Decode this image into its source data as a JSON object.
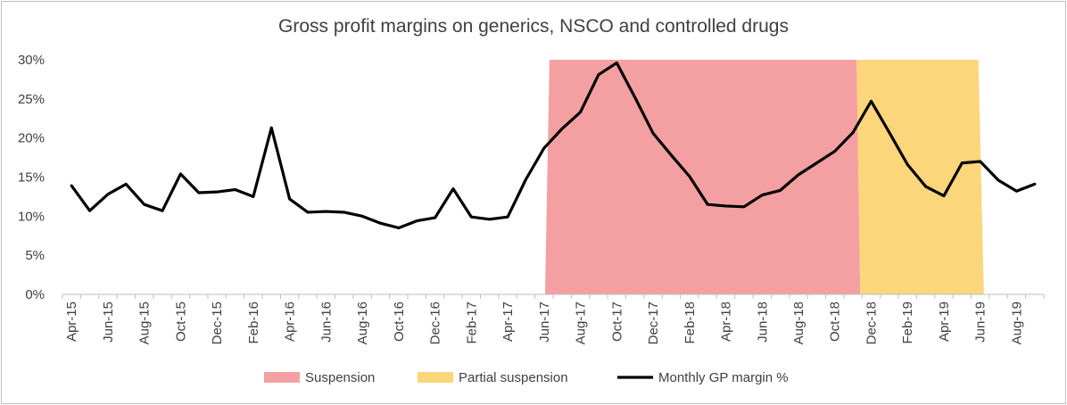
{
  "chart_data": {
    "type": "line",
    "title": "Gross profit margins on generics, NSCO and controlled drugs",
    "ylim": [
      0,
      0.3
    ],
    "y_ticks": [
      {
        "value": 0.0,
        "label": "0%"
      },
      {
        "value": 0.05,
        "label": "5%"
      },
      {
        "value": 0.1,
        "label": "10%"
      },
      {
        "value": 0.15,
        "label": "15%"
      },
      {
        "value": 0.2,
        "label": "20%"
      },
      {
        "value": 0.25,
        "label": "25%"
      },
      {
        "value": 0.3,
        "label": "30%"
      }
    ],
    "x_tick_labels": [
      "Apr-15",
      "Jun-15",
      "Aug-15",
      "Oct-15",
      "Dec-15",
      "Feb-16",
      "Apr-16",
      "Jun-16",
      "Aug-16",
      "Oct-16",
      "Dec-16",
      "Feb-17",
      "Apr-17",
      "Jun-17",
      "Aug-17",
      "Oct-17",
      "Dec-17",
      "Feb-18",
      "Apr-18",
      "Jun-18",
      "Aug-18",
      "Oct-18",
      "Dec-18",
      "Feb-19",
      "Apr-19",
      "Jun-19",
      "Aug-19"
    ],
    "series": [
      {
        "name": "Monthly GP margin %",
        "color": "#000000",
        "values": [
          0.139,
          0.107,
          0.128,
          0.141,
          0.115,
          0.107,
          0.154,
          0.13,
          0.131,
          0.134,
          0.125,
          0.213,
          0.122,
          0.105,
          0.106,
          0.105,
          0.1,
          0.091,
          0.085,
          0.094,
          0.098,
          0.135,
          0.099,
          0.096,
          0.099,
          0.147,
          0.187,
          0.212,
          0.233,
          0.281,
          0.296,
          0.252,
          0.206,
          0.178,
          0.151,
          0.115,
          0.113,
          0.112,
          0.127,
          0.133,
          0.153,
          0.168,
          0.183,
          0.207,
          0.247,
          0.207,
          0.166,
          0.138,
          0.126,
          0.168,
          0.17,
          0.146,
          0.132,
          0.141
        ]
      }
    ],
    "bands": [
      {
        "name": "Suspension",
        "color": "#f4a0a2",
        "start_index": 26.3,
        "end_index": 43.2,
        "bottom_end_index": 43.4
      },
      {
        "name": "Partial suspension",
        "color": "#fbd67b",
        "start_index": 43.2,
        "end_index": 49.9,
        "bottom_end_index": 50.2
      }
    ],
    "legend": [
      {
        "label": "Suspension",
        "kind": "box",
        "color": "#f4a0a2"
      },
      {
        "label": "Partial suspension",
        "kind": "box",
        "color": "#fbd67b"
      },
      {
        "label": "Monthly GP margin %",
        "kind": "line",
        "color": "#000000"
      }
    ],
    "legend_position": "bottom",
    "grid": false
  }
}
